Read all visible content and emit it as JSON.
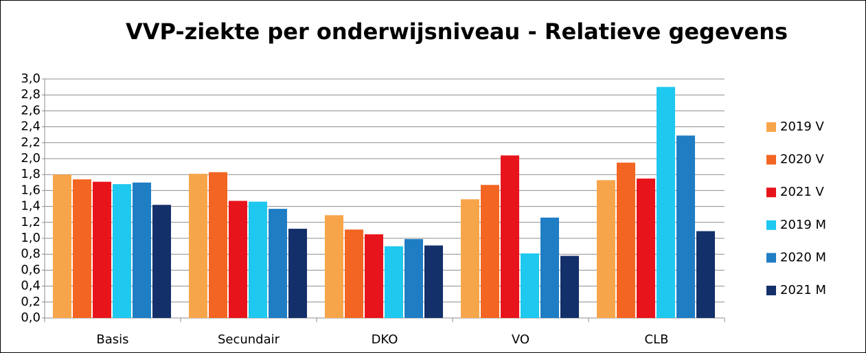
{
  "chart_data": {
    "type": "bar",
    "title": "VVP-ziekte per onderwijsniveau - Relatieve gegevens",
    "categories": [
      "Basis",
      "Secundair",
      "DKO",
      "VO",
      "CLB"
    ],
    "series": [
      {
        "name": "2019 V",
        "color": "#f7a54a",
        "values": [
          1.8,
          1.81,
          1.29,
          1.49,
          1.73
        ]
      },
      {
        "name": "2020 V",
        "color": "#f26522",
        "values": [
          1.74,
          1.83,
          1.11,
          1.67,
          1.95
        ]
      },
      {
        "name": "2021 V",
        "color": "#e8141b",
        "values": [
          1.71,
          1.47,
          1.05,
          2.04,
          1.75
        ]
      },
      {
        "name": "2019 M",
        "color": "#1ec8ef",
        "values": [
          1.68,
          1.46,
          0.9,
          0.81,
          2.9
        ]
      },
      {
        "name": "2020 M",
        "color": "#1f7dc4",
        "values": [
          1.7,
          1.37,
          0.99,
          1.26,
          2.29
        ]
      },
      {
        "name": "2021 M",
        "color": "#14306b",
        "values": [
          1.42,
          1.12,
          0.91,
          0.78,
          1.09
        ]
      }
    ],
    "ylim": [
      0,
      3
    ],
    "yticks": [
      {
        "value": 0,
        "label": "0,0"
      },
      {
        "value": 0.2,
        "label": "0,2"
      },
      {
        "value": 0.4,
        "label": "0,4"
      },
      {
        "value": 0.6,
        "label": "0,6"
      },
      {
        "value": 0.8,
        "label": "0,8"
      },
      {
        "value": 1,
        "label": "1,0"
      },
      {
        "value": 1.2,
        "label": "1,2"
      },
      {
        "value": 1.4,
        "label": "1,4"
      },
      {
        "value": 1.6,
        "label": "1,6"
      },
      {
        "value": 1.8,
        "label": "1,8"
      },
      {
        "value": 2,
        "label": "2,0"
      },
      {
        "value": 2.2,
        "label": "2,2"
      },
      {
        "value": 2.4,
        "label": "2,4"
      },
      {
        "value": 2.6,
        "label": "2,6"
      },
      {
        "value": 2.8,
        "label": "2,8"
      },
      {
        "value": 3,
        "label": "3,0"
      }
    ],
    "grid": true,
    "legend": "right"
  }
}
